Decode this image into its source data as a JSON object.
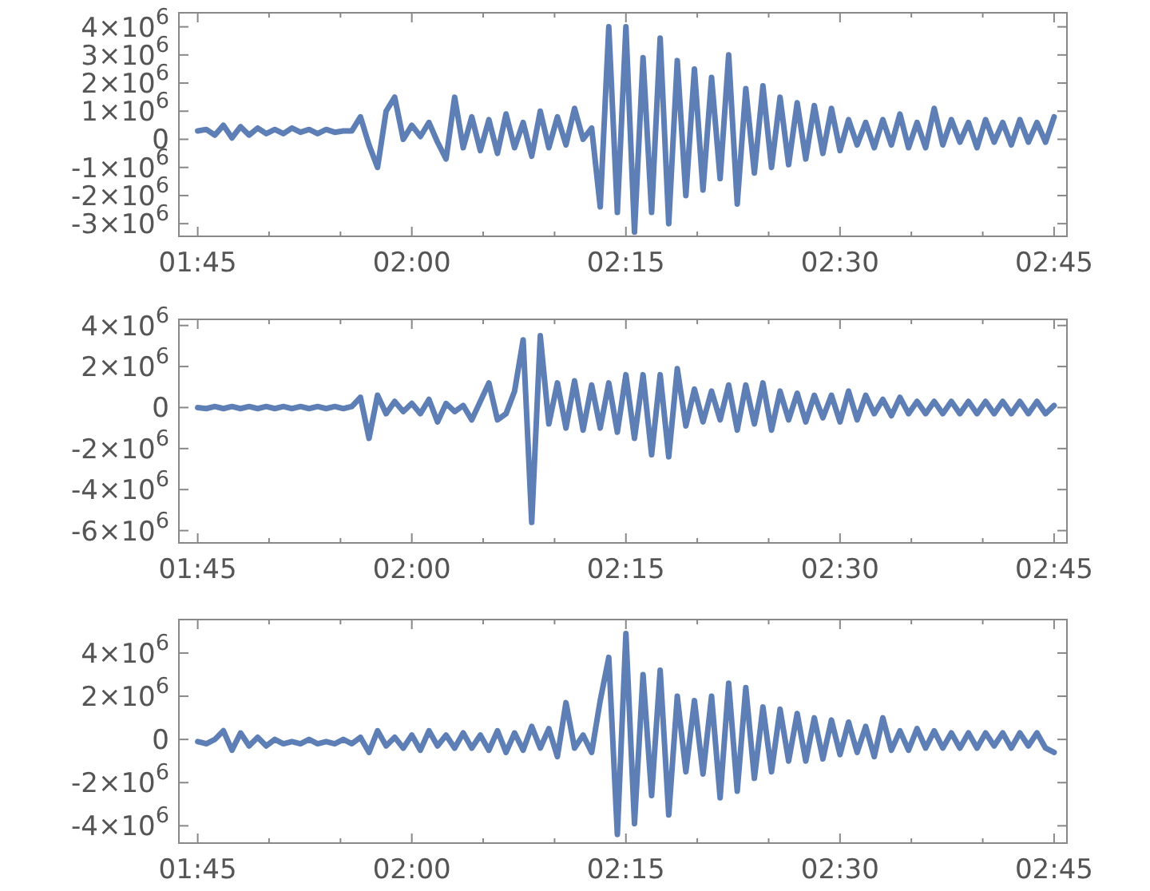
{
  "chart_data": [
    {
      "type": "line",
      "color": "#5d7fb6",
      "grid": false,
      "marker": "none",
      "line_style": "solid",
      "xlim": [
        1.728,
        2.765
      ],
      "xticks": [
        {
          "value": 1.75,
          "label": "01:45"
        },
        {
          "value": 1.8333,
          "label": null
        },
        {
          "value": 1.9167,
          "label": null
        },
        {
          "value": 2,
          "label": "02:00"
        },
        {
          "value": 2.0833,
          "label": null
        },
        {
          "value": 2.1667,
          "label": null
        },
        {
          "value": 2.25,
          "label": "02:15"
        },
        {
          "value": 2.3333,
          "label": null
        },
        {
          "value": 2.4167,
          "label": null
        },
        {
          "value": 2.5,
          "label": "02:30"
        },
        {
          "value": 2.5833,
          "label": null
        },
        {
          "value": 2.6667,
          "label": null
        },
        {
          "value": 2.75,
          "label": "02:45"
        }
      ],
      "ylim": [
        -3450000,
        4500000
      ],
      "yticks": [
        {
          "value": 4000000,
          "label": "4×10$^{6}$"
        },
        {
          "value": 3000000,
          "label": "3×10$^{6}$"
        },
        {
          "value": 2000000,
          "label": "2×10$^{6}$"
        },
        {
          "value": 1000000,
          "label": "1×10$^{6}$"
        },
        {
          "value": 0,
          "label": "0"
        },
        {
          "value": -1000000,
          "label": "-1×10$^{6}$"
        },
        {
          "value": -2000000,
          "label": "-2×10$^{6}$"
        },
        {
          "value": -3000000,
          "label": "-3×10$^{6}$"
        }
      ],
      "x": [
        1.75,
        1.76,
        1.77,
        1.78,
        1.79,
        1.8,
        1.81,
        1.82,
        1.83,
        1.84,
        1.85,
        1.86,
        1.87,
        1.88,
        1.89,
        1.9,
        1.91,
        1.92,
        1.93,
        1.94,
        1.95,
        1.96,
        1.97,
        1.98,
        1.99,
        2,
        2.01,
        2.02,
        2.03,
        2.04,
        2.05,
        2.06,
        2.07,
        2.08,
        2.09,
        2.1,
        2.11,
        2.12,
        2.13,
        2.14,
        2.15,
        2.16,
        2.17,
        2.18,
        2.19,
        2.2,
        2.21,
        2.22,
        2.23,
        2.24,
        2.25,
        2.26,
        2.27,
        2.28,
        2.29,
        2.3,
        2.31,
        2.32,
        2.33,
        2.34,
        2.35,
        2.36,
        2.37,
        2.38,
        2.39,
        2.4,
        2.41,
        2.42,
        2.43,
        2.44,
        2.45,
        2.46,
        2.47,
        2.48,
        2.49,
        2.5,
        2.51,
        2.52,
        2.53,
        2.54,
        2.55,
        2.56,
        2.57,
        2.58,
        2.59,
        2.6,
        2.61,
        2.62,
        2.63,
        2.64,
        2.65,
        2.66,
        2.67,
        2.68,
        2.69,
        2.7,
        2.71,
        2.72,
        2.73,
        2.74,
        2.75
      ],
      "values": [
        300000,
        350000,
        150000,
        500000,
        50000,
        450000,
        150000,
        400000,
        200000,
        350000,
        200000,
        400000,
        250000,
        350000,
        200000,
        350000,
        250000,
        300000,
        300000,
        800000,
        -200000,
        -1000000,
        1000000,
        1500000,
        0,
        500000,
        100000,
        600000,
        -100000,
        -700000,
        1500000,
        -300000,
        800000,
        -400000,
        700000,
        -500000,
        900000,
        -300000,
        600000,
        -600000,
        1000000,
        -300000,
        800000,
        -200000,
        1100000,
        0,
        400000,
        -2400000,
        4000000,
        -2600000,
        4000000,
        -3300000,
        2900000,
        -2600000,
        3600000,
        -3000000,
        2800000,
        -2000000,
        2500000,
        -1800000,
        2200000,
        -1400000,
        3000000,
        -2300000,
        1800000,
        -1200000,
        1900000,
        -1000000,
        1500000,
        -900000,
        1300000,
        -700000,
        1200000,
        -500000,
        1100000,
        -400000,
        700000,
        -200000,
        600000,
        -300000,
        700000,
        -200000,
        900000,
        -300000,
        600000,
        -300000,
        1100000,
        -200000,
        700000,
        -100000,
        600000,
        -300000,
        700000,
        -100000,
        600000,
        -200000,
        700000,
        -100000,
        600000,
        -100000,
        800000
      ]
    },
    {
      "type": "line",
      "color": "#5d7fb6",
      "grid": false,
      "marker": "none",
      "line_style": "solid",
      "xlim": [
        1.728,
        2.765
      ],
      "xticks": [
        {
          "value": 1.75,
          "label": "01:45"
        },
        {
          "value": 1.8333,
          "label": null
        },
        {
          "value": 1.9167,
          "label": null
        },
        {
          "value": 2,
          "label": "02:00"
        },
        {
          "value": 2.0833,
          "label": null
        },
        {
          "value": 2.1667,
          "label": null
        },
        {
          "value": 2.25,
          "label": "02:15"
        },
        {
          "value": 2.3333,
          "label": null
        },
        {
          "value": 2.4167,
          "label": null
        },
        {
          "value": 2.5,
          "label": "02:30"
        },
        {
          "value": 2.5833,
          "label": null
        },
        {
          "value": 2.6667,
          "label": null
        },
        {
          "value": 2.75,
          "label": "02:45"
        }
      ],
      "ylim": [
        -6600000,
        4300000
      ],
      "yticks": [
        {
          "value": 4000000,
          "label": "4×10$^{6}$"
        },
        {
          "value": 2000000,
          "label": "2×10$^{6}$"
        },
        {
          "value": 0,
          "label": "0"
        },
        {
          "value": -2000000,
          "label": "-2×10$^{6}$"
        },
        {
          "value": -4000000,
          "label": "-4×10$^{6}$"
        },
        {
          "value": -6000000,
          "label": "-6×10$^{6}$"
        }
      ],
      "x": [
        1.75,
        1.76,
        1.77,
        1.78,
        1.79,
        1.8,
        1.81,
        1.82,
        1.83,
        1.84,
        1.85,
        1.86,
        1.87,
        1.88,
        1.89,
        1.9,
        1.91,
        1.92,
        1.93,
        1.94,
        1.95,
        1.96,
        1.97,
        1.98,
        1.99,
        2,
        2.01,
        2.02,
        2.03,
        2.04,
        2.05,
        2.06,
        2.07,
        2.08,
        2.09,
        2.1,
        2.11,
        2.12,
        2.13,
        2.14,
        2.15,
        2.16,
        2.17,
        2.18,
        2.19,
        2.2,
        2.21,
        2.22,
        2.23,
        2.24,
        2.25,
        2.26,
        2.27,
        2.28,
        2.29,
        2.3,
        2.31,
        2.32,
        2.33,
        2.34,
        2.35,
        2.36,
        2.37,
        2.38,
        2.39,
        2.4,
        2.41,
        2.42,
        2.43,
        2.44,
        2.45,
        2.46,
        2.47,
        2.48,
        2.49,
        2.5,
        2.51,
        2.52,
        2.53,
        2.54,
        2.55,
        2.56,
        2.57,
        2.58,
        2.59,
        2.6,
        2.61,
        2.62,
        2.63,
        2.64,
        2.65,
        2.66,
        2.67,
        2.68,
        2.69,
        2.7,
        2.71,
        2.72,
        2.73,
        2.74,
        2.75
      ],
      "values": [
        0,
        -50000,
        50000,
        -50000,
        50000,
        -50000,
        50000,
        -50000,
        50000,
        -50000,
        50000,
        -50000,
        50000,
        -50000,
        50000,
        -50000,
        50000,
        -50000,
        50000,
        500000,
        -1500000,
        600000,
        -300000,
        300000,
        -200000,
        200000,
        -300000,
        400000,
        -700000,
        200000,
        -200000,
        100000,
        -600000,
        300000,
        1200000,
        -600000,
        -300000,
        800000,
        3300000,
        -5600000,
        3500000,
        -800000,
        1200000,
        -1000000,
        1300000,
        -1100000,
        1100000,
        -1000000,
        1200000,
        -1200000,
        1600000,
        -1500000,
        1600000,
        -2300000,
        1600000,
        -2400000,
        1900000,
        -900000,
        900000,
        -700000,
        800000,
        -600000,
        1100000,
        -1100000,
        1100000,
        -800000,
        1200000,
        -1100000,
        800000,
        -600000,
        700000,
        -700000,
        600000,
        -500000,
        600000,
        -700000,
        800000,
        -600000,
        600000,
        -300000,
        400000,
        -400000,
        500000,
        -300000,
        300000,
        -300000,
        300000,
        -300000,
        300000,
        -300000,
        300000,
        -300000,
        300000,
        -300000,
        300000,
        -300000,
        300000,
        -300000,
        300000,
        -300000,
        100000
      ]
    },
    {
      "type": "line",
      "color": "#5d7fb6",
      "grid": false,
      "marker": "none",
      "line_style": "solid",
      "xlim": [
        1.728,
        2.765
      ],
      "xticks": [
        {
          "value": 1.75,
          "label": "01:45"
        },
        {
          "value": 1.8333,
          "label": null
        },
        {
          "value": 1.9167,
          "label": null
        },
        {
          "value": 2,
          "label": "02:00"
        },
        {
          "value": 2.0833,
          "label": null
        },
        {
          "value": 2.1667,
          "label": null
        },
        {
          "value": 2.25,
          "label": "02:15"
        },
        {
          "value": 2.3333,
          "label": null
        },
        {
          "value": 2.4167,
          "label": null
        },
        {
          "value": 2.5,
          "label": "02:30"
        },
        {
          "value": 2.5833,
          "label": null
        },
        {
          "value": 2.6667,
          "label": null
        },
        {
          "value": 2.75,
          "label": "02:45"
        }
      ],
      "ylim": [
        -4800000,
        5550000
      ],
      "yticks": [
        {
          "value": 4000000,
          "label": "4×10$^{6}$"
        },
        {
          "value": 2000000,
          "label": "2×10$^{6}$"
        },
        {
          "value": 0,
          "label": "0"
        },
        {
          "value": -2000000,
          "label": "-2×10$^{6}$"
        },
        {
          "value": -4000000,
          "label": "-4×10$^{6}$"
        }
      ],
      "x": [
        1.75,
        1.76,
        1.77,
        1.78,
        1.79,
        1.8,
        1.81,
        1.82,
        1.83,
        1.84,
        1.85,
        1.86,
        1.87,
        1.88,
        1.89,
        1.9,
        1.91,
        1.92,
        1.93,
        1.94,
        1.95,
        1.96,
        1.97,
        1.98,
        1.99,
        2,
        2.01,
        2.02,
        2.03,
        2.04,
        2.05,
        2.06,
        2.07,
        2.08,
        2.09,
        2.1,
        2.11,
        2.12,
        2.13,
        2.14,
        2.15,
        2.16,
        2.17,
        2.18,
        2.19,
        2.2,
        2.21,
        2.22,
        2.23,
        2.24,
        2.25,
        2.26,
        2.27,
        2.28,
        2.29,
        2.3,
        2.31,
        2.32,
        2.33,
        2.34,
        2.35,
        2.36,
        2.37,
        2.38,
        2.39,
        2.4,
        2.41,
        2.42,
        2.43,
        2.44,
        2.45,
        2.46,
        2.47,
        2.48,
        2.49,
        2.5,
        2.51,
        2.52,
        2.53,
        2.54,
        2.55,
        2.56,
        2.57,
        2.58,
        2.59,
        2.6,
        2.61,
        2.62,
        2.63,
        2.64,
        2.65,
        2.66,
        2.67,
        2.68,
        2.69,
        2.7,
        2.71,
        2.72,
        2.73,
        2.74,
        2.75
      ],
      "values": [
        -100000,
        -200000,
        0,
        400000,
        -500000,
        300000,
        -300000,
        100000,
        -300000,
        0,
        -200000,
        -100000,
        -200000,
        0,
        -200000,
        -100000,
        -200000,
        0,
        -200000,
        100000,
        -600000,
        400000,
        -300000,
        100000,
        -400000,
        200000,
        -500000,
        400000,
        -300000,
        200000,
        -400000,
        300000,
        -400000,
        200000,
        -500000,
        400000,
        -600000,
        300000,
        -500000,
        600000,
        -400000,
        500000,
        -800000,
        1700000,
        -400000,
        200000,
        -600000,
        1800000,
        3800000,
        -4400000,
        4900000,
        -3900000,
        3000000,
        -2600000,
        3200000,
        -3500000,
        2000000,
        -1500000,
        1800000,
        -1600000,
        2000000,
        -2700000,
        2600000,
        -2400000,
        2400000,
        -1800000,
        1500000,
        -1500000,
        1400000,
        -1000000,
        1200000,
        -1000000,
        1000000,
        -900000,
        900000,
        -700000,
        800000,
        -600000,
        600000,
        -800000,
        1000000,
        -500000,
        400000,
        -500000,
        500000,
        -400000,
        400000,
        -400000,
        300000,
        -400000,
        300000,
        -400000,
        300000,
        -300000,
        300000,
        -400000,
        300000,
        -300000,
        300000,
        -400000,
        -600000
      ]
    }
  ]
}
